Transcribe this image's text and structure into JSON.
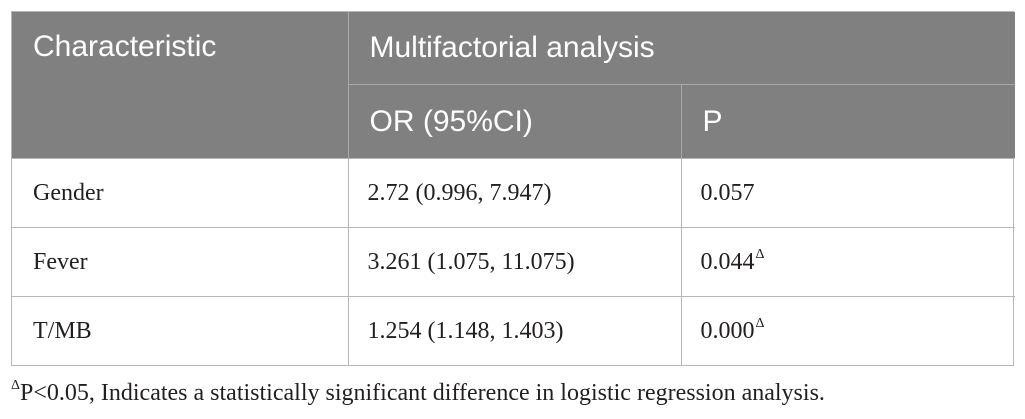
{
  "table": {
    "headers": {
      "characteristic": "Characteristic",
      "multifactorial": "Multifactorial analysis",
      "or_ci": "OR (95%CI)",
      "p": "P"
    },
    "rows": [
      {
        "characteristic": "Gender",
        "or_ci": "2.72 (0.996, 7.947)",
        "p": "0.057",
        "p_marker": ""
      },
      {
        "characteristic": "Fever",
        "or_ci": "3.261 (1.075, 11.075)",
        "p": "0.044",
        "p_marker": "Δ"
      },
      {
        "characteristic": "T/MB",
        "or_ci": "1.254 (1.148, 1.403)",
        "p": "0.000",
        "p_marker": "Δ"
      }
    ]
  },
  "footnote": {
    "marker": "Δ",
    "text": "P<0.05, Indicates a statistically significant difference in logistic regression analysis."
  },
  "colors": {
    "header_bg": "#808080",
    "header_text": "#ffffff",
    "border": "#b7b7b7",
    "body_text": "#231f20"
  }
}
